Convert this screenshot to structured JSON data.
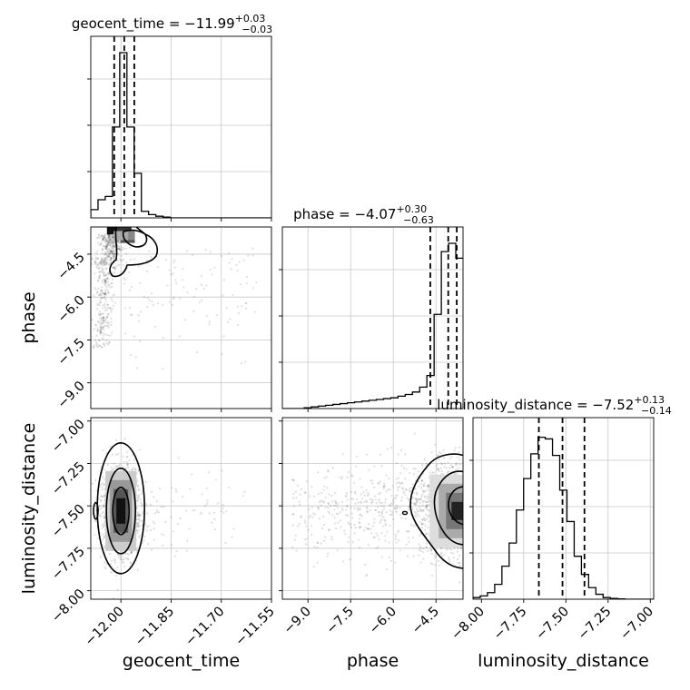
{
  "chart_data": {
    "type": "corner",
    "parameters": [
      "geocent_time",
      "phase",
      "luminosity_distance"
    ],
    "ranges": {
      "geocent_time": [
        -12.09,
        -11.55
      ],
      "phase": [
        -9.9,
        -3.55
      ],
      "luminosity_distance": [
        -8.05,
        -6.98
      ]
    },
    "grid": true,
    "titles": {
      "geocent_time": {
        "prefix": "geocent_time = −11.99",
        "sup": "+0.03",
        "sub": "−0.03"
      },
      "phase": {
        "prefix": "phase = −4.07",
        "sup": "+0.30",
        "sub": "−0.63"
      },
      "luminosity_distance": {
        "prefix": "luminosity_distance = −7.52",
        "sup": "+0.13",
        "sub": "−0.14"
      }
    },
    "xlabels": [
      "geocent_time",
      "phase",
      "luminosity_distance"
    ],
    "ylabels": [
      "phase",
      "luminosity_distance"
    ],
    "ticks": {
      "geocent_time": [
        "−12.00",
        "−11.85",
        "−11.70",
        "−11.55"
      ],
      "phase": [
        "−9.0",
        "−7.5",
        "−6.0",
        "−4.5"
      ],
      "luminosity_distance": [
        "−8.00",
        "−7.75",
        "−7.50",
        "−7.25",
        "−7.00"
      ]
    },
    "quantiles": {
      "geocent_time": [
        -12.02,
        -11.99,
        -11.96
      ],
      "phase": [
        -4.7,
        -4.07,
        -3.77
      ],
      "luminosity_distance": [
        -7.66,
        -7.52,
        -7.39
      ]
    },
    "histograms": {
      "geocent_time": {
        "edges_start": -12.09,
        "bin_width": 0.0216,
        "counts": [
          0.05,
          0.11,
          0.13,
          0.55,
          1.0,
          0.55,
          0.27,
          0.04,
          0.02,
          0.01,
          0.005,
          0,
          0,
          0,
          0,
          0,
          0,
          0,
          0,
          0,
          0,
          0,
          0,
          0,
          0
        ]
      },
      "phase": {
        "edges_start": -9.9,
        "bin_width": 0.254,
        "counts": [
          0,
          0,
          0,
          0.005,
          0.01,
          0.015,
          0.02,
          0.025,
          0.03,
          0.035,
          0.04,
          0.045,
          0.05,
          0.055,
          0.06,
          0.065,
          0.075,
          0.085,
          0.1,
          0.13,
          0.2,
          0.57,
          0.95,
          1.0,
          0.91
        ]
      },
      "luminosity_distance": {
        "edges_start": -8.05,
        "bin_width": 0.0428,
        "counts": [
          0.01,
          0.02,
          0.04,
          0.09,
          0.2,
          0.34,
          0.54,
          0.73,
          0.88,
          0.98,
          0.97,
          0.87,
          0.66,
          0.47,
          0.26,
          0.15,
          0.07,
          0.03,
          0.01,
          0.005,
          0.002,
          0,
          0,
          0,
          0
        ]
      }
    }
  }
}
